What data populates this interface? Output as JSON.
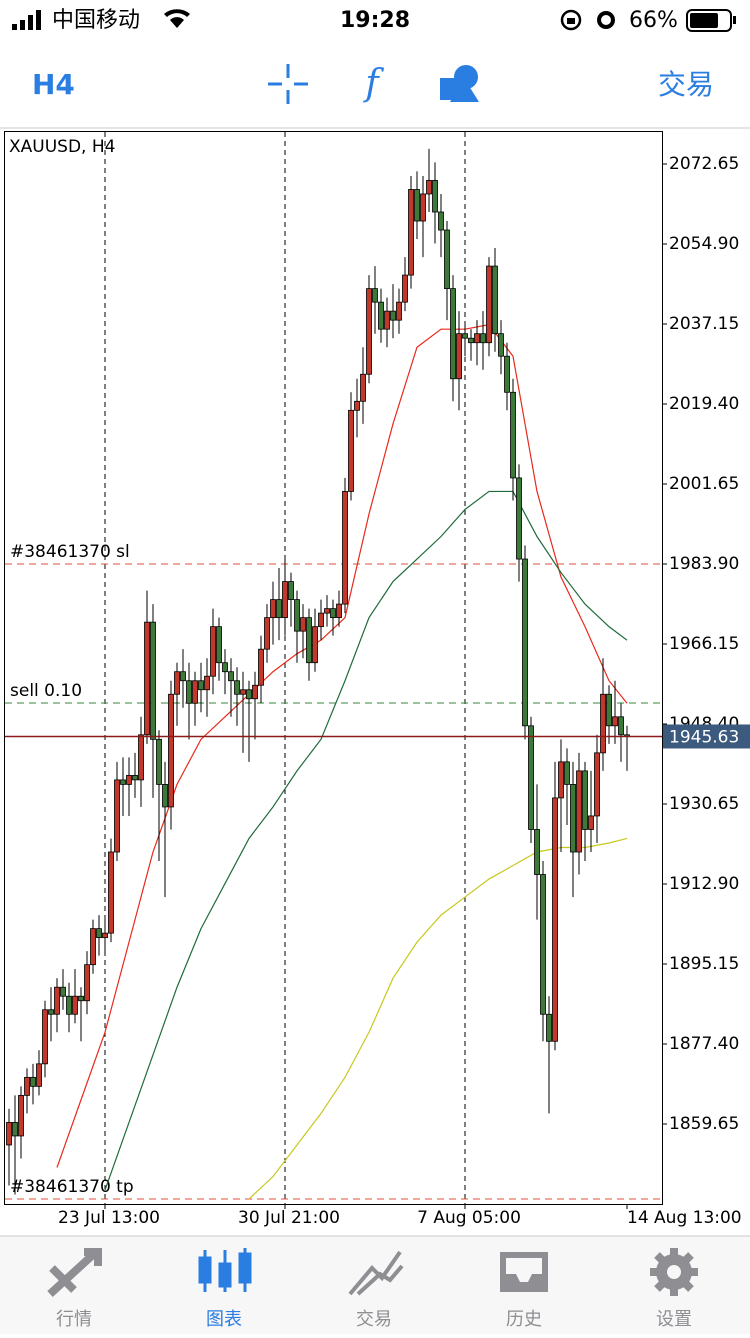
{
  "status_bar": {
    "carrier": "中国移动",
    "time": "19:28",
    "battery": "66%"
  },
  "toolbar": {
    "timeframe": "H4",
    "trade": "交易"
  },
  "chart_data": {
    "type": "candlestick",
    "title": "XAUUSD, H4",
    "categories": [
      null,
      null,
      null,
      null,
      null,
      null,
      null,
      null,
      null,
      null,
      null,
      null,
      null,
      null,
      null,
      null,
      "23 Jul 13:00",
      null,
      null,
      null,
      null,
      null,
      null,
      null,
      null,
      null,
      null,
      null,
      null,
      null,
      null,
      null,
      null,
      null,
      null,
      null,
      null,
      null,
      null,
      null,
      null,
      null,
      null,
      null,
      null,
      null,
      "30 Jul 21:00",
      null,
      null,
      null,
      null,
      null,
      null,
      null,
      null,
      null,
      null,
      null,
      null,
      null,
      null,
      null,
      null,
      null,
      null,
      null,
      null,
      null,
      null,
      null,
      null,
      null,
      null,
      null,
      null,
      null,
      "7 Aug 05:00",
      null,
      null,
      null,
      null,
      null,
      null,
      null,
      null,
      null,
      null,
      null,
      null,
      null,
      null,
      null,
      null,
      null,
      null,
      null,
      null,
      null,
      null,
      null,
      null,
      null,
      null,
      "14 Aug 13:00"
    ],
    "open": [
      1855,
      1860,
      1857,
      1866,
      1870,
      1868,
      1873,
      1885,
      1884,
      1890,
      1888,
      1884,
      1888,
      1887,
      1895,
      1903,
      1901,
      1902,
      1920,
      1936,
      1935,
      1937,
      1936,
      1946,
      1971,
      1945,
      1935,
      1930,
      1955,
      1960,
      1958,
      1953,
      1958,
      1956,
      1959,
      1970,
      1962,
      1960,
      1958,
      1955,
      1956,
      1954,
      1957,
      1965,
      1972,
      1976,
      1972,
      1980,
      1976,
      1969,
      1972,
      1962,
      1970,
      1973,
      1974,
      1972,
      1975,
      2000,
      2018,
      2020,
      2026,
      2045,
      2042,
      2036,
      2040,
      2038,
      2042,
      2048,
      2067,
      2060,
      2066,
      2069,
      2062,
      2058,
      2045,
      2025,
      2035,
      2034,
      2033,
      2035,
      2033,
      2050,
      2035,
      2030,
      2022,
      2003,
      1985,
      1948,
      1925,
      1915,
      1884,
      1878,
      1932,
      1940,
      1935,
      1920,
      1938,
      1925,
      1928,
      1942,
      1955,
      1948,
      1950,
      1946
    ],
    "high": [
      1863,
      1866,
      1868,
      1872,
      1873,
      1876,
      1887,
      1890,
      1892,
      1894,
      1891,
      1894,
      1890,
      1898,
      1905,
      1906,
      1905,
      1923,
      1940,
      1941,
      1941,
      1942,
      1950,
      1978,
      1975,
      1947,
      1940,
      1958,
      1962,
      1965,
      1962,
      1960,
      1962,
      1963,
      1974,
      1972,
      1965,
      1963,
      1961,
      1960,
      1958,
      1960,
      1968,
      1975,
      1980,
      1983,
      1985,
      1982,
      1978,
      1975,
      1974,
      1974,
      1976,
      1977,
      1976,
      1978,
      2003,
      2022,
      2025,
      2032,
      2048,
      2050,
      2045,
      2043,
      2046,
      2045,
      2052,
      2070,
      2071,
      2070,
      2076,
      2073,
      2066,
      2060,
      2048,
      2040,
      2037,
      2036,
      2038,
      2040,
      2052,
      2054,
      2038,
      2033,
      2025,
      2006,
      1988,
      1950,
      1935,
      1918,
      1888,
      1940,
      1945,
      1943,
      1940,
      1942,
      1940,
      1938,
      1946,
      1963,
      1957,
      1958,
      1953,
      1948
    ],
    "low": [
      1846,
      1844,
      1852,
      1862,
      1864,
      1866,
      1870,
      1878,
      1880,
      1885,
      1880,
      1882,
      1878,
      1884,
      1893,
      1897,
      1898,
      1900,
      1918,
      1928,
      1928,
      1932,
      1930,
      1944,
      1932,
      1918,
      1910,
      1925,
      1948,
      1952,
      1945,
      1948,
      1951,
      1950,
      1955,
      1958,
      1955,
      1950,
      1948,
      1942,
      1940,
      1945,
      1953,
      1962,
      1966,
      1967,
      1968,
      1970,
      1962,
      1963,
      1958,
      1960,
      1967,
      1970,
      1968,
      1970,
      1973,
      1998,
      2012,
      2015,
      2024,
      2035,
      2033,
      2032,
      2034,
      2035,
      2040,
      2045,
      2056,
      2052,
      2062,
      2055,
      2052,
      2038,
      2020,
      2018,
      2030,
      2029,
      2028,
      2027,
      2030,
      2031,
      2026,
      2018,
      1998,
      1980,
      1945,
      1922,
      1905,
      1878,
      1862,
      1876,
      1920,
      1926,
      1910,
      1915,
      1918,
      1920,
      1922,
      1938,
      1944,
      1944,
      1940,
      1938
    ],
    "close": [
      1860,
      1857,
      1866,
      1870,
      1868,
      1873,
      1885,
      1884,
      1890,
      1888,
      1884,
      1888,
      1887,
      1895,
      1903,
      1901,
      1902,
      1920,
      1936,
      1935,
      1937,
      1936,
      1946,
      1971,
      1945,
      1935,
      1930,
      1955,
      1960,
      1958,
      1953,
      1958,
      1956,
      1959,
      1970,
      1962,
      1960,
      1958,
      1955,
      1956,
      1954,
      1957,
      1965,
      1972,
      1976,
      1972,
      1980,
      1976,
      1969,
      1972,
      1962,
      1970,
      1973,
      1974,
      1972,
      1975,
      2000,
      2018,
      2020,
      2026,
      2045,
      2042,
      2036,
      2040,
      2038,
      2042,
      2048,
      2067,
      2060,
      2066,
      2069,
      2062,
      2058,
      2045,
      2025,
      2035,
      2034,
      2033,
      2035,
      2033,
      2050,
      2035,
      2030,
      2022,
      2003,
      1985,
      1948,
      1925,
      1915,
      1884,
      1878,
      1932,
      1940,
      1935,
      1920,
      1938,
      1925,
      1928,
      1942,
      1955,
      1948,
      1950,
      1946,
      1945.63
    ],
    "up_color": "#c0392b",
    "down_color": "#3d7a3a",
    "lines": [
      {
        "color": "#e8291c",
        "x": [
          8,
          12,
          16,
          20,
          24,
          28,
          32,
          36,
          40,
          44,
          48,
          52,
          56,
          60,
          64,
          68,
          72,
          76,
          80,
          84,
          88,
          92,
          96,
          100,
          103
        ],
        "values": [
          1850,
          1865,
          1880,
          1900,
          1920,
          1935,
          1945,
          1950,
          1955,
          1960,
          1964,
          1967,
          1972,
          1995,
          2015,
          2032,
          2036,
          2036,
          2037,
          2030,
          2000,
          1981,
          1970,
          1958,
          1953
        ]
      },
      {
        "color": "#1f6b3a",
        "x": [
          16,
          20,
          24,
          28,
          32,
          36,
          40,
          44,
          48,
          52,
          56,
          60,
          64,
          68,
          72,
          76,
          80,
          84,
          88,
          92,
          96,
          100,
          103
        ],
        "values": [
          1845,
          1860,
          1875,
          1890,
          1903,
          1913,
          1923,
          1930,
          1938,
          1945,
          1958,
          1972,
          1980,
          1985,
          1990,
          1996,
          2000,
          2000,
          1990,
          1982,
          1975,
          1970,
          1967
        ]
      },
      {
        "color": "#c8c81e",
        "x": [
          40,
          44,
          48,
          52,
          56,
          60,
          64,
          68,
          72,
          76,
          80,
          84,
          88,
          92,
          96,
          100,
          103
        ],
        "values": [
          1843,
          1848,
          1855,
          1862,
          1870,
          1880,
          1892,
          1900,
          1906,
          1910,
          1914,
          1917,
          1920,
          1921,
          1921,
          1922,
          1923
        ]
      }
    ],
    "levels": [
      {
        "label": "#38461370 sl",
        "value": 1983.9,
        "color": "#e0523a"
      },
      {
        "label": "sell 0.10",
        "value": 1953.06,
        "color": "#3a8a3a"
      },
      {
        "label": "#38461370 tp",
        "value": 1843.0,
        "color": "#e0523a"
      }
    ],
    "last_price": 1945.63,
    "ylim": [
      1841.9,
      2079.75
    ],
    "yticks": [
      2072.65,
      {
        "value": 2054.9,
        "label": "2054.90"
      },
      2037.15,
      {
        "value": 2019.4,
        "label": "2019.40"
      },
      2001.65,
      {
        "value": 1983.9,
        "label": "1983.90"
      },
      1966.15,
      {
        "value": 1948.4,
        "label": "1948.40"
      },
      1930.65,
      {
        "value": 1912.9,
        "label": "1912.90"
      },
      1895.15,
      {
        "value": 1877.4,
        "label": "1877.40"
      },
      1859.65
    ],
    "grid": true
  },
  "tabs": [
    "行情",
    "图表",
    "交易",
    "历史",
    "设置"
  ]
}
